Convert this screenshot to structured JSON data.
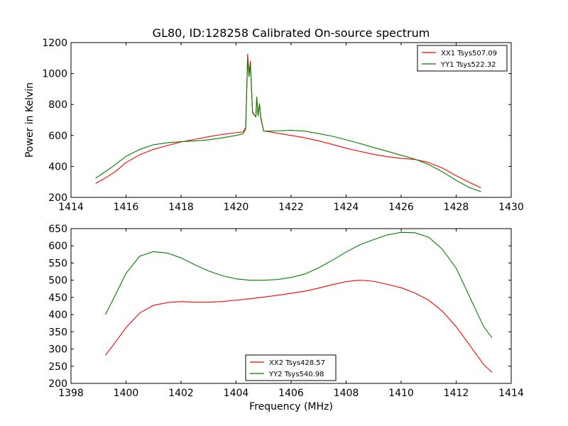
{
  "chart_data": [
    {
      "type": "line",
      "title": "GL80, ID:128258 Calibrated On-source spectrum",
      "xlabel": "",
      "ylabel": "Power in Kelvin",
      "xlim": [
        1414,
        1430
      ],
      "ylim": [
        200,
        1200
      ],
      "xticks": [
        1414,
        1416,
        1418,
        1420,
        1422,
        1424,
        1426,
        1428,
        1430
      ],
      "yticks": [
        200,
        400,
        600,
        800,
        1000,
        1200
      ],
      "legend_position": "top-right",
      "series": [
        {
          "name": "XX1 Tsys507.09",
          "color": "#ff0000",
          "points": [
            [
              1414.9,
              290
            ],
            [
              1415.2,
              320
            ],
            [
              1415.6,
              365
            ],
            [
              1416.0,
              425
            ],
            [
              1416.5,
              475
            ],
            [
              1417.0,
              510
            ],
            [
              1417.5,
              535
            ],
            [
              1418.0,
              558
            ],
            [
              1418.5,
              575
            ],
            [
              1419.0,
              592
            ],
            [
              1419.5,
              607
            ],
            [
              1420.0,
              618
            ],
            [
              1420.25,
              622
            ],
            [
              1420.35,
              650
            ],
            [
              1420.42,
              1125
            ],
            [
              1420.47,
              1000
            ],
            [
              1420.52,
              1080
            ],
            [
              1420.6,
              750
            ],
            [
              1420.72,
              720
            ],
            [
              1420.75,
              850
            ],
            [
              1420.8,
              730
            ],
            [
              1420.85,
              800
            ],
            [
              1420.9,
              710
            ],
            [
              1420.95,
              670
            ],
            [
              1421.0,
              630
            ],
            [
              1421.5,
              615
            ],
            [
              1422.0,
              600
            ],
            [
              1422.5,
              585
            ],
            [
              1423.0,
              565
            ],
            [
              1423.5,
              542
            ],
            [
              1424.0,
              518
            ],
            [
              1424.5,
              497
            ],
            [
              1425.0,
              478
            ],
            [
              1425.5,
              463
            ],
            [
              1426.0,
              452
            ],
            [
              1426.5,
              445
            ],
            [
              1427.0,
              425
            ],
            [
              1427.5,
              390
            ],
            [
              1428.0,
              340
            ],
            [
              1428.5,
              295
            ],
            [
              1428.9,
              262
            ]
          ]
        },
        {
          "name": "YY1 Tsys522.32",
          "color": "#008000",
          "points": [
            [
              1414.9,
              325
            ],
            [
              1415.2,
              360
            ],
            [
              1415.6,
              410
            ],
            [
              1416.0,
              465
            ],
            [
              1416.5,
              510
            ],
            [
              1417.0,
              540
            ],
            [
              1417.5,
              553
            ],
            [
              1418.0,
              560
            ],
            [
              1418.5,
              565
            ],
            [
              1419.0,
              572
            ],
            [
              1419.5,
              585
            ],
            [
              1420.0,
              600
            ],
            [
              1420.25,
              610
            ],
            [
              1420.35,
              640
            ],
            [
              1420.42,
              1095
            ],
            [
              1420.47,
              980
            ],
            [
              1420.52,
              1060
            ],
            [
              1420.6,
              745
            ],
            [
              1420.72,
              720
            ],
            [
              1420.75,
              845
            ],
            [
              1420.8,
              725
            ],
            [
              1420.85,
              805
            ],
            [
              1420.9,
              720
            ],
            [
              1420.95,
              675
            ],
            [
              1421.0,
              628
            ],
            [
              1421.5,
              630
            ],
            [
              1422.0,
              633
            ],
            [
              1422.5,
              628
            ],
            [
              1423.0,
              612
            ],
            [
              1423.5,
              595
            ],
            [
              1424.0,
              572
            ],
            [
              1424.5,
              548
            ],
            [
              1425.0,
              522
            ],
            [
              1425.5,
              498
            ],
            [
              1426.0,
              472
            ],
            [
              1426.5,
              447
            ],
            [
              1427.0,
              412
            ],
            [
              1427.5,
              365
            ],
            [
              1428.0,
              310
            ],
            [
              1428.5,
              262
            ],
            [
              1428.9,
              237
            ]
          ]
        }
      ]
    },
    {
      "type": "line",
      "title": "",
      "xlabel": "Frequency (MHz)",
      "ylabel": "",
      "xlim": [
        1398,
        1414
      ],
      "ylim": [
        200,
        650
      ],
      "xticks": [
        1398,
        1400,
        1402,
        1404,
        1406,
        1408,
        1410,
        1412,
        1414
      ],
      "yticks": [
        200,
        250,
        300,
        350,
        400,
        450,
        500,
        550,
        600,
        650
      ],
      "legend_position": "lower-center",
      "series": [
        {
          "name": "XX2 Tsys428.57",
          "color": "#ff0000",
          "points": [
            [
              1399.25,
              282
            ],
            [
              1399.6,
              318
            ],
            [
              1400.0,
              362
            ],
            [
              1400.5,
              405
            ],
            [
              1401.0,
              427
            ],
            [
              1401.5,
              435
            ],
            [
              1402.0,
              438
            ],
            [
              1402.5,
              436
            ],
            [
              1403.0,
              436
            ],
            [
              1403.5,
              438
            ],
            [
              1404.0,
              442
            ],
            [
              1404.5,
              446
            ],
            [
              1405.0,
              451
            ],
            [
              1405.5,
              456
            ],
            [
              1406.0,
              462
            ],
            [
              1406.5,
              468
            ],
            [
              1407.0,
              477
            ],
            [
              1407.5,
              487
            ],
            [
              1408.0,
              496
            ],
            [
              1408.5,
              500
            ],
            [
              1409.0,
              497
            ],
            [
              1409.5,
              488
            ],
            [
              1410.0,
              478
            ],
            [
              1410.5,
              463
            ],
            [
              1411.0,
              442
            ],
            [
              1411.5,
              410
            ],
            [
              1412.0,
              365
            ],
            [
              1412.5,
              310
            ],
            [
              1413.0,
              255
            ],
            [
              1413.3,
              232
            ]
          ]
        },
        {
          "name": "YY2 Tsys540.98",
          "color": "#008000",
          "points": [
            [
              1399.25,
              400
            ],
            [
              1399.6,
              455
            ],
            [
              1400.0,
              520
            ],
            [
              1400.5,
              570
            ],
            [
              1401.0,
              583
            ],
            [
              1401.5,
              579
            ],
            [
              1402.0,
              565
            ],
            [
              1402.5,
              545
            ],
            [
              1403.0,
              527
            ],
            [
              1403.5,
              513
            ],
            [
              1404.0,
              504
            ],
            [
              1404.5,
              500
            ],
            [
              1405.0,
              500
            ],
            [
              1405.5,
              502
            ],
            [
              1406.0,
              508
            ],
            [
              1406.5,
              518
            ],
            [
              1407.0,
              536
            ],
            [
              1407.5,
              558
            ],
            [
              1408.0,
              582
            ],
            [
              1408.5,
              603
            ],
            [
              1409.0,
              618
            ],
            [
              1409.5,
              632
            ],
            [
              1410.0,
              639
            ],
            [
              1410.5,
              638
            ],
            [
              1411.0,
              625
            ],
            [
              1411.5,
              590
            ],
            [
              1412.0,
              535
            ],
            [
              1412.5,
              450
            ],
            [
              1413.0,
              365
            ],
            [
              1413.3,
              333
            ]
          ]
        }
      ]
    }
  ]
}
